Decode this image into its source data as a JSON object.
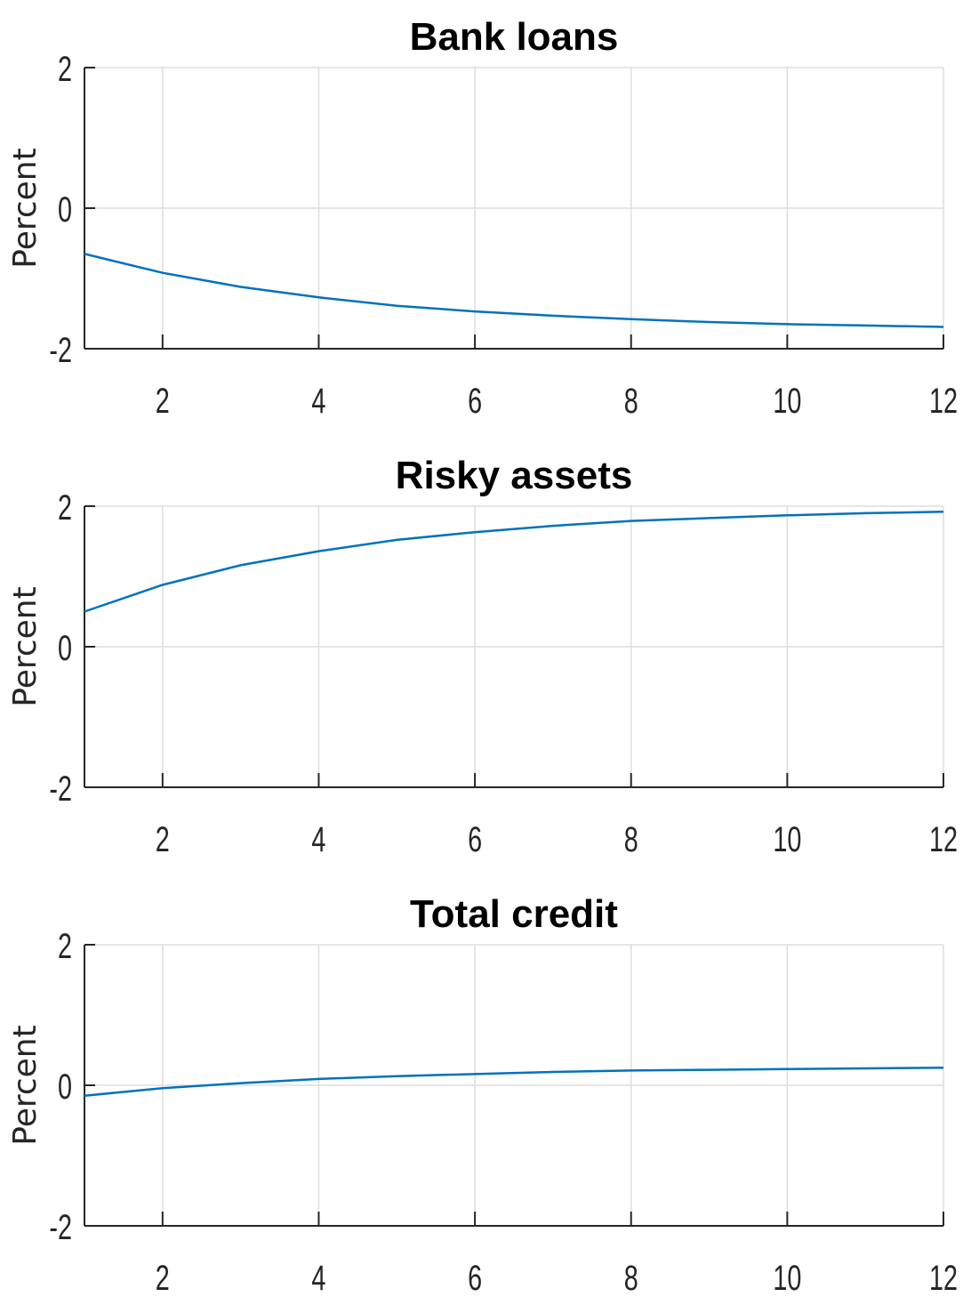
{
  "chart_data": [
    {
      "type": "line",
      "title": "Bank loans",
      "ylabel": "Percent",
      "xlabel": "",
      "xlim": [
        1,
        12
      ],
      "ylim": [
        -2,
        2
      ],
      "xticks": [
        2,
        4,
        6,
        8,
        10,
        12
      ],
      "yticks": [
        -2,
        0,
        2
      ],
      "grid": true,
      "series": [
        {
          "color": "#0072BD",
          "x": [
            1,
            2,
            3,
            4,
            5,
            6,
            7,
            8,
            9,
            10,
            11,
            12
          ],
          "y": [
            -0.65,
            -0.92,
            -1.12,
            -1.27,
            -1.39,
            -1.47,
            -1.53,
            -1.58,
            -1.62,
            -1.65,
            -1.67,
            -1.69
          ]
        }
      ]
    },
    {
      "type": "line",
      "title": "Risky assets",
      "ylabel": "Percent",
      "xlabel": "",
      "xlim": [
        1,
        12
      ],
      "ylim": [
        -2,
        2
      ],
      "xticks": [
        2,
        4,
        6,
        8,
        10,
        12
      ],
      "yticks": [
        -2,
        0,
        2
      ],
      "grid": true,
      "series": [
        {
          "color": "#0072BD",
          "x": [
            1,
            2,
            3,
            4,
            5,
            6,
            7,
            8,
            9,
            10,
            11,
            12
          ],
          "y": [
            0.5,
            0.88,
            1.16,
            1.36,
            1.52,
            1.63,
            1.72,
            1.79,
            1.83,
            1.87,
            1.9,
            1.92
          ]
        }
      ]
    },
    {
      "type": "line",
      "title": "Total credit",
      "ylabel": "Percent",
      "xlabel": "",
      "xlim": [
        1,
        12
      ],
      "ylim": [
        -2,
        2
      ],
      "xticks": [
        2,
        4,
        6,
        8,
        10,
        12
      ],
      "yticks": [
        -2,
        0,
        2
      ],
      "grid": true,
      "series": [
        {
          "color": "#0072BD",
          "x": [
            1,
            2,
            3,
            4,
            5,
            6,
            7,
            8,
            9,
            10,
            11,
            12
          ],
          "y": [
            -0.15,
            -0.04,
            0.03,
            0.09,
            0.13,
            0.16,
            0.19,
            0.21,
            0.22,
            0.23,
            0.24,
            0.25
          ]
        }
      ]
    }
  ]
}
